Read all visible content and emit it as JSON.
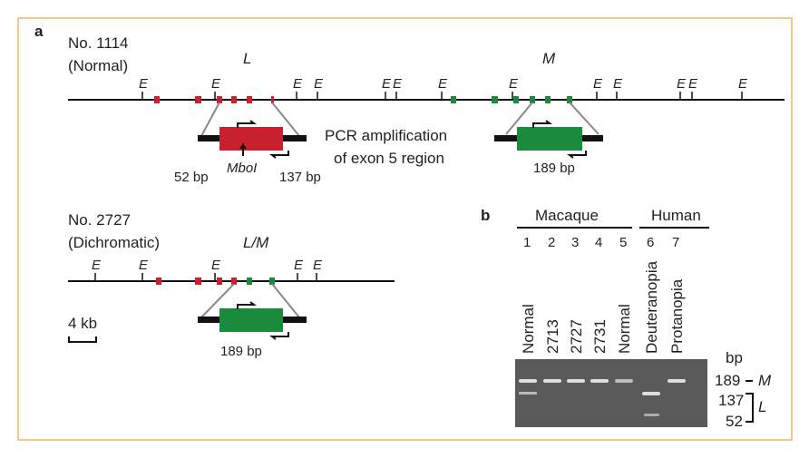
{
  "panel_a": {
    "label": "a",
    "normal": {
      "id": "No. 1114",
      "status": "(Normal)",
      "gene_l": "L",
      "gene_m": "M",
      "e_sites": [
        "E",
        "E",
        "E",
        "E",
        "E",
        "E",
        "E",
        "E",
        "E",
        "E",
        "E",
        "E",
        "E"
      ],
      "pcr_line1": "PCR amplification",
      "pcr_line2": "of exon 5 region",
      "enzyme": "MboI",
      "fragment_left": "52 bp",
      "fragment_right": "137 bp",
      "product_m": "189 bp"
    },
    "dichromatic": {
      "id": "No. 2727",
      "status": "(Dichromatic)",
      "gene": "L/M",
      "e_sites": [
        "E",
        "E",
        "E",
        "E",
        "E"
      ],
      "product": "189 bp",
      "scale": "4 kb"
    }
  },
  "panel_b": {
    "label": "b",
    "group_macaque": "Macaque",
    "group_human": "Human",
    "lanes": [
      "1",
      "2",
      "3",
      "4",
      "5",
      "6",
      "7"
    ],
    "samples": [
      "Normal",
      "2713",
      "2727",
      "2731",
      "Normal",
      "Deuteranopia",
      "Protanopia"
    ],
    "unit": "bp",
    "size_189": "189",
    "band_m": "M",
    "size_137": "137",
    "size_52": "52",
    "band_l": "L"
  }
}
